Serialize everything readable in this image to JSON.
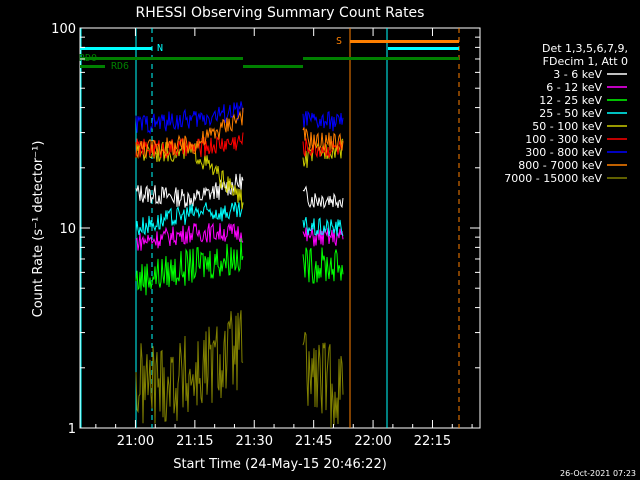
{
  "chart_data": {
    "type": "line",
    "title": "RHESSI Observing Summary Count Rates",
    "xlabel": "Start Time (24-May-15 20:46:22)",
    "ylabel": "Count Rate (s⁻¹ detector⁻¹)",
    "yscale": "log",
    "ylim": [
      1,
      100
    ],
    "xlim": [
      "20:46",
      "22:27"
    ],
    "x_ticks": [
      "21:00",
      "21:15",
      "21:30",
      "21:45",
      "22:00",
      "22:15"
    ],
    "y_ticks": [
      "1",
      "10",
      "100"
    ],
    "grid": false,
    "legend_position": "right",
    "legend_header": [
      "Det 1,3,5,6,7,9,",
      "FDecim 1, Att 0"
    ],
    "footer_date": "26-Oct-2021 07:23",
    "series": [
      {
        "name": "3 - 6 keV",
        "color": "#ffffff",
        "x": [
          "21:00",
          "21:15",
          "21:30",
          "21:45",
          "21:50"
        ],
        "values": [
          15,
          14,
          18,
          14,
          14
        ]
      },
      {
        "name": "6 - 12 keV",
        "color": "#ff00ff",
        "x": [
          "21:00",
          "21:15",
          "21:30",
          "21:45",
          "21:50"
        ],
        "values": [
          8.5,
          9.5,
          9.5,
          9,
          9
        ]
      },
      {
        "name": "12 - 25 keV",
        "color": "#00ff00",
        "x": [
          "21:00",
          "21:15",
          "21:30",
          "21:45",
          "21:50"
        ],
        "values": [
          5.5,
          6.5,
          7.5,
          6.5,
          6.5
        ]
      },
      {
        "name": "25 - 50 keV",
        "color": "#00ffff",
        "x": [
          "21:00",
          "21:15",
          "21:30",
          "21:45",
          "21:50"
        ],
        "values": [
          10,
          12,
          12,
          10,
          10
        ]
      },
      {
        "name": "50 - 100 keV",
        "color": "#cccc00",
        "x": [
          "21:00",
          "21:15",
          "21:30",
          "21:45",
          "21:50"
        ],
        "values": [
          24,
          24,
          12,
          24,
          25
        ]
      },
      {
        "name": "100 - 300 keV",
        "color": "#ff0000",
        "x": [
          "21:00",
          "21:15",
          "21:30",
          "21:45",
          "21:50"
        ],
        "values": [
          25,
          25,
          28,
          25,
          25
        ]
      },
      {
        "name": "300 - 800 keV",
        "color": "#0000ff",
        "x": [
          "21:00",
          "21:15",
          "21:30",
          "21:45",
          "21:50"
        ],
        "values": [
          33,
          35,
          40,
          34,
          34
        ]
      },
      {
        "name": "800 - 7000 keV",
        "color": "#ff8000",
        "x": [
          "21:00",
          "21:15",
          "21:30",
          "21:45",
          "21:50"
        ],
        "values": [
          25,
          26,
          40,
          27,
          27
        ]
      },
      {
        "name": "7000 - 15000 keV",
        "color": "#808000",
        "x": [
          "21:00",
          "21:15",
          "21:30",
          "21:45",
          "21:50"
        ],
        "values": [
          1.6,
          1.8,
          2.8,
          1.8,
          1.6
        ]
      }
    ],
    "annotations": [
      {
        "label": "N",
        "color": "#00ffff"
      },
      {
        "label": "S",
        "color": "#ff8000"
      },
      {
        "label": "RD0",
        "color": "#008000"
      },
      {
        "label": "RD6",
        "color": "#008000"
      }
    ]
  }
}
